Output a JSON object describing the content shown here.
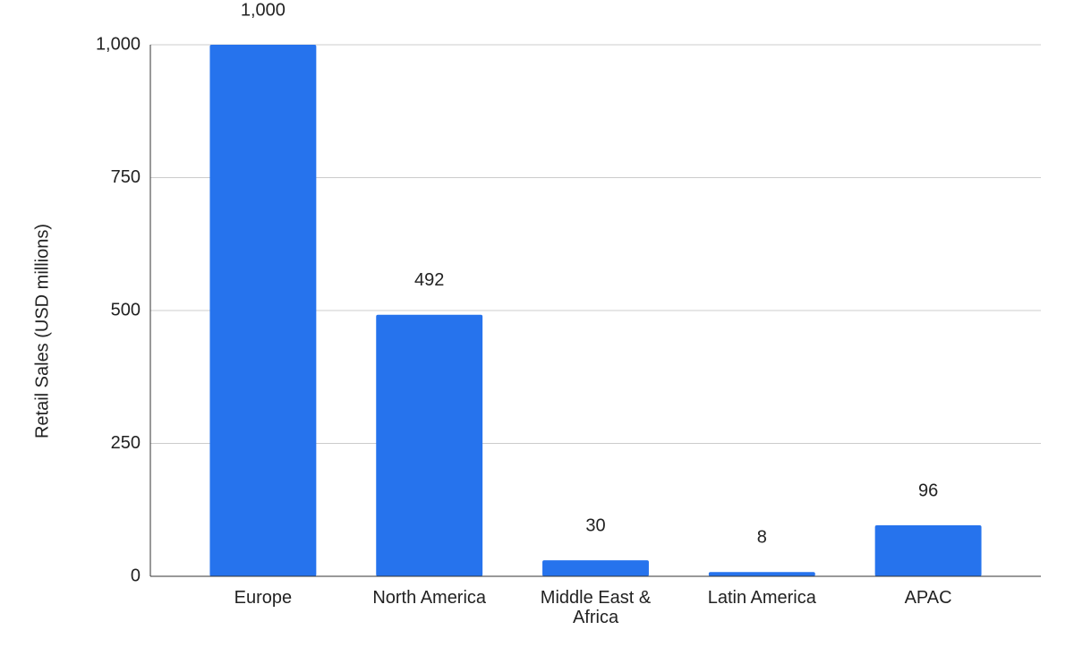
{
  "chart_data": {
    "type": "bar",
    "y_axis_label": "Retail Sales (USD millions)",
    "categories": [
      "Europe",
      "North America",
      "Middle East & Africa",
      "Latin America",
      "APAC"
    ],
    "values": [
      1000,
      492,
      30,
      8,
      96
    ],
    "value_labels": [
      "1,000",
      "492",
      "30",
      "8",
      "96"
    ],
    "color": "#2673ed",
    "ylim": [
      0,
      1000
    ],
    "yticks": [
      0,
      250,
      500,
      750,
      {
        "value": 1000,
        "label": "1,000"
      }
    ],
    "grid": true
  }
}
